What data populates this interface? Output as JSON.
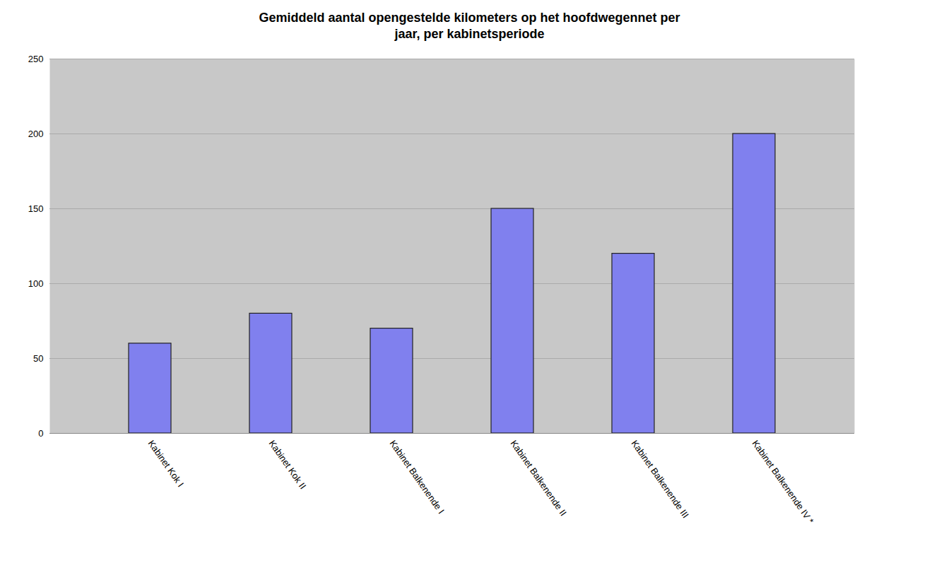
{
  "chart_data": {
    "type": "bar",
    "title": "Gemiddeld aantal opengestelde kilometers op het hoofdwegennet per\njaar, per kabinetsperiode",
    "categories": [
      "Kabinet Kok I",
      "Kabinet Kok II",
      "Kabinet Balkenende I",
      "Kabinet Balkenende II",
      "Kabinet Balkenende III",
      "Kabinet Balkenende IV *"
    ],
    "values": [
      60,
      80,
      70,
      150,
      120,
      200
    ],
    "color": "#8080EE",
    "ylim": [
      0,
      250
    ],
    "yticks": [
      0,
      50,
      100,
      150,
      200,
      250
    ],
    "grid": true
  }
}
